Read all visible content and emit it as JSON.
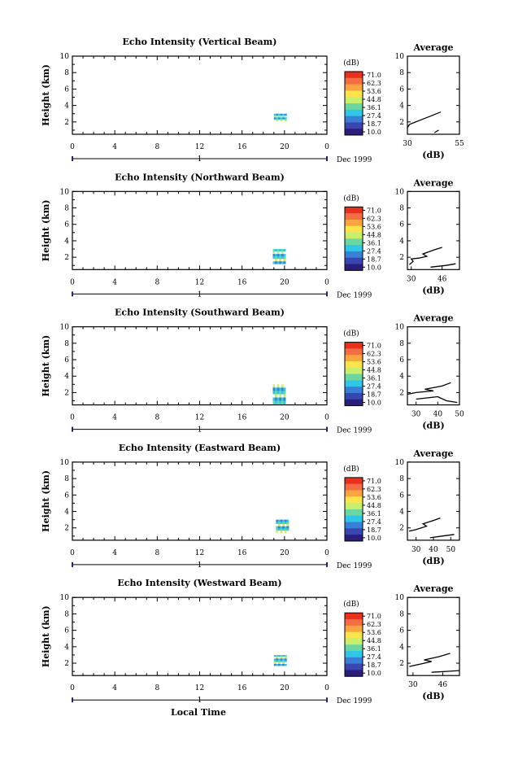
{
  "footer": {
    "xlabel": "Local Time"
  },
  "colorbar": {
    "unit": "(dB)",
    "ticks": [
      "71.0",
      "62.3",
      "53.6",
      "44.8",
      "36.1",
      "27.4",
      "18.7",
      "10.0"
    ],
    "colors": [
      "#e8301c",
      "#f46d43",
      "#fba440",
      "#fee34a",
      "#c8ee6c",
      "#6ad7a0",
      "#2fc6e8",
      "#3a7fd6",
      "#3a45b0",
      "#2b1d7a"
    ]
  },
  "chart_data": [
    {
      "type": "heatmap",
      "title": "Echo Intensity (Vertical Beam)",
      "ylabel": "Height (km)",
      "xlim": [
        0,
        24
      ],
      "ylim": [
        0.5,
        10
      ],
      "x_ticks": [
        "0",
        "4",
        "8",
        "12",
        "16",
        "20",
        "0"
      ],
      "y_ticks": [
        "2",
        "4",
        "6",
        "8",
        "10"
      ],
      "day_label": "1",
      "month_label": "Dec 1999",
      "cells": [
        [
          19,
          20.2,
          2.1,
          3.0
        ]
      ],
      "average": {
        "title": "Average",
        "xlabel": "(dB)",
        "x_ticks": [
          "30",
          "55"
        ],
        "xlim": [
          30,
          55
        ],
        "profile": [
          [
            30,
            1.3
          ],
          [
            31,
            1.7
          ],
          [
            35,
            2.1
          ],
          [
            39,
            2.5
          ],
          [
            41,
            2.7
          ],
          [
            43,
            2.9
          ],
          [
            46,
            3.2
          ]
        ],
        "tail": [
          [
            43,
            0.7
          ],
          [
            45,
            1.0
          ]
        ]
      }
    },
    {
      "type": "heatmap",
      "title": "Echo Intensity (Northward Beam)",
      "ylabel": "Height (km)",
      "xlim": [
        0,
        24
      ],
      "ylim": [
        0.5,
        10
      ],
      "x_ticks": [
        "0",
        "4",
        "8",
        "12",
        "16",
        "20",
        "0"
      ],
      "y_ticks": [
        "2",
        "4",
        "6",
        "8",
        "10"
      ],
      "day_label": "1",
      "month_label": "Dec 1999",
      "cells": [
        [
          18.9,
          20.1,
          1.2,
          3.0
        ]
      ],
      "average": {
        "title": "Average",
        "xlabel": "(dB)",
        "x_ticks": [
          "30",
          "46"
        ],
        "xlim": [
          28,
          55
        ],
        "profile": [
          [
            29,
            1.1
          ],
          [
            31,
            1.5
          ],
          [
            30,
            1.8
          ],
          [
            34,
            1.9
          ],
          [
            38,
            2.1
          ],
          [
            36,
            2.4
          ],
          [
            42,
            2.9
          ],
          [
            46,
            3.2
          ]
        ],
        "tail": [
          [
            40,
            0.8
          ],
          [
            48,
            1.0
          ],
          [
            53,
            1.2
          ]
        ]
      }
    },
    {
      "type": "heatmap",
      "title": "Echo Intensity (Southward Beam)",
      "ylabel": "Height (km)",
      "xlim": [
        0,
        24
      ],
      "ylim": [
        0.5,
        10
      ],
      "x_ticks": [
        "0",
        "4",
        "8",
        "12",
        "16",
        "20",
        "0"
      ],
      "y_ticks": [
        "2",
        "4",
        "6",
        "8",
        "10"
      ],
      "day_label": "1",
      "month_label": "Dec 1999",
      "cells": [
        [
          18.9,
          20.1,
          0.6,
          3.0
        ]
      ],
      "average": {
        "title": "Average",
        "xlabel": "(dB)",
        "x_ticks": [
          "30",
          "40",
          "50"
        ],
        "xlim": [
          26,
          50
        ],
        "profile": [
          [
            26,
            1.8
          ],
          [
            30,
            2.0
          ],
          [
            38,
            2.2
          ],
          [
            34,
            2.4
          ],
          [
            42,
            2.8
          ],
          [
            46,
            3.2
          ]
        ],
        "tail": [
          [
            30,
            1.2
          ],
          [
            40,
            1.5
          ],
          [
            44,
            1.0
          ],
          [
            49,
            0.8
          ]
        ]
      }
    },
    {
      "type": "heatmap",
      "title": "Echo Intensity (Eastward Beam)",
      "ylabel": "Height (km)",
      "xlim": [
        0,
        24
      ],
      "ylim": [
        0.5,
        10
      ],
      "x_ticks": [
        "0",
        "4",
        "8",
        "12",
        "16",
        "20",
        "0"
      ],
      "y_ticks": [
        "2",
        "4",
        "6",
        "8",
        "10"
      ],
      "day_label": "1",
      "month_label": "Dec 1999",
      "cells": [
        [
          19.2,
          20.4,
          1.4,
          3.0
        ]
      ],
      "average": {
        "title": "Average",
        "xlabel": "(dB)",
        "x_ticks": [
          "30",
          "40",
          "50"
        ],
        "xlim": [
          25,
          55
        ],
        "profile": [
          [
            26,
            1.6
          ],
          [
            30,
            1.8
          ],
          [
            36,
            2.2
          ],
          [
            34,
            2.5
          ],
          [
            40,
            2.9
          ],
          [
            44,
            3.2
          ]
        ],
        "tail": [
          [
            38,
            0.8
          ],
          [
            45,
            1.0
          ],
          [
            52,
            1.2
          ]
        ]
      }
    },
    {
      "type": "heatmap",
      "title": "Echo Intensity (Westward Beam)",
      "ylabel": "Height (km)",
      "xlim": [
        0,
        24
      ],
      "ylim": [
        0.5,
        10
      ],
      "x_ticks": [
        "0",
        "4",
        "8",
        "12",
        "16",
        "20",
        "0"
      ],
      "y_ticks": [
        "2",
        "4",
        "6",
        "8",
        "10"
      ],
      "day_label": "1",
      "month_label": "Dec 1999",
      "cells": [
        [
          19.0,
          20.2,
          1.7,
          3.0
        ]
      ],
      "average": {
        "title": "Average",
        "xlabel": "(dB)",
        "x_ticks": [
          "30",
          "46"
        ],
        "xlim": [
          27,
          55
        ],
        "profile": [
          [
            28,
            1.6
          ],
          [
            34,
            1.9
          ],
          [
            40,
            2.2
          ],
          [
            36,
            2.4
          ],
          [
            44,
            2.8
          ],
          [
            50,
            3.2
          ]
        ],
        "tail": [
          [
            40,
            0.9
          ],
          [
            48,
            1.0
          ],
          [
            55,
            1.1
          ]
        ]
      }
    }
  ]
}
